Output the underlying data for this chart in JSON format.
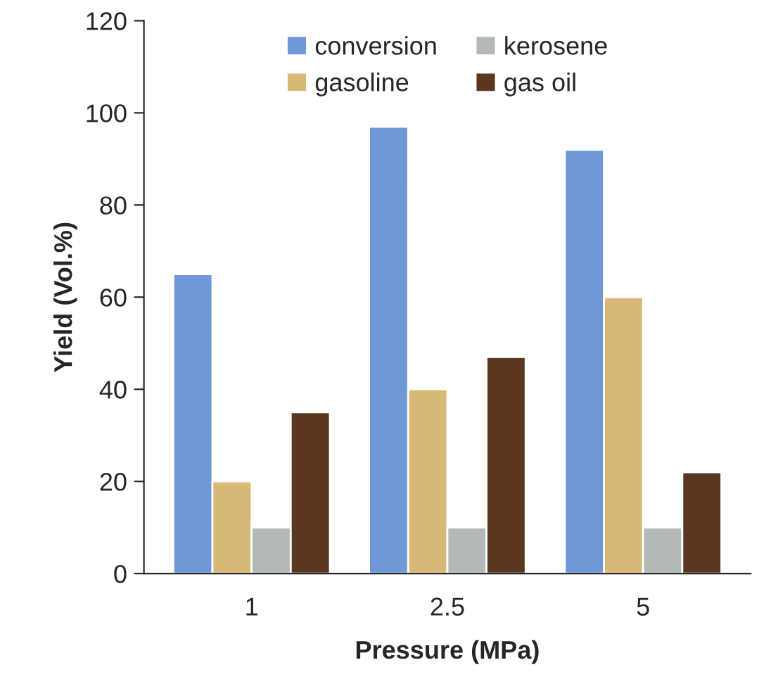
{
  "chart_data": {
    "type": "bar",
    "xlabel": "Pressure (MPa)",
    "ylabel": "Yield (Vol.%)",
    "categories": [
      "1",
      "2.5",
      "5"
    ],
    "series": [
      {
        "name": "conversion",
        "color": "#7097d6",
        "values": [
          65,
          97,
          92
        ]
      },
      {
        "name": "gasoline",
        "color": "#d8b877",
        "values": [
          20,
          40,
          60
        ]
      },
      {
        "name": "kerosene",
        "color": "#b3b8b8",
        "values": [
          10,
          10,
          10
        ]
      },
      {
        "name": "gas oil",
        "color": "#5b3621",
        "values": [
          35,
          47,
          22
        ]
      }
    ],
    "ylim": [
      0,
      120
    ],
    "yticks": [
      0,
      20,
      40,
      60,
      80,
      100,
      120
    ],
    "grid": false,
    "legend": "top"
  }
}
